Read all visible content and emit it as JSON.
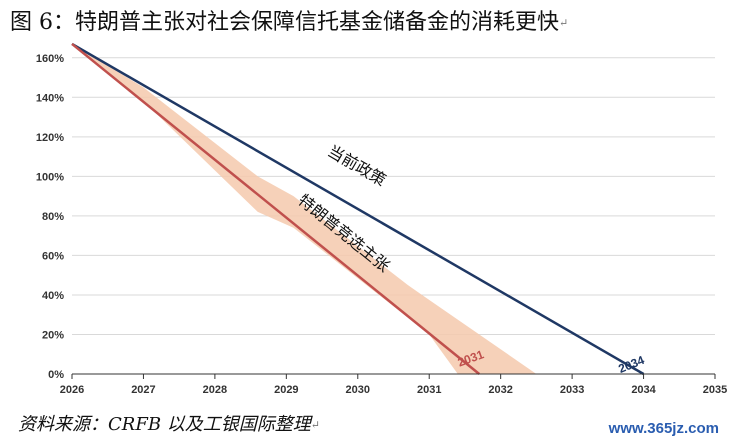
{
  "title": "图 6：特朗普主张对社会保障信托基金储备金的消耗更快",
  "return_mark": "↵",
  "source": "资料来源：CRFB 以及工银国际整理",
  "watermark": "www.365jz.com",
  "colors": {
    "current": "#1f3864",
    "trump": "#c0504d",
    "band": "#f4c9ad",
    "grid": "#d9d9d9",
    "axis": "#333333"
  },
  "chart_data": {
    "type": "line",
    "x_ticks": [
      "2026",
      "2027",
      "2028",
      "2029",
      "2030",
      "2031",
      "2032",
      "2033",
      "2034",
      "2035"
    ],
    "y_ticks": [
      "0%",
      "20%",
      "40%",
      "60%",
      "80%",
      "100%",
      "120%",
      "140%",
      "160%"
    ],
    "xlim": [
      2026,
      2035
    ],
    "ylim": [
      0,
      170
    ],
    "grid": true,
    "series": [
      {
        "name": "当前政策",
        "color": "#1f3864",
        "x": [
          2026.0,
          2034.0
        ],
        "y": [
          167,
          0
        ],
        "end_label": "2034"
      },
      {
        "name": "特朗普竞选主张",
        "color": "#c0504d",
        "x": [
          2026.0,
          2031.7
        ],
        "y": [
          167,
          0
        ],
        "end_label": "2031"
      }
    ],
    "band": {
      "color": "#f4c9ad",
      "upper": {
        "x": [
          2026.0,
          2027.0,
          2028.6,
          2029.1,
          2030.7,
          2030.9,
          2032.5
        ],
        "y": [
          167,
          145,
          100,
          90,
          45,
          40,
          0
        ]
      },
      "lower": {
        "x": [
          2026.0,
          2027.0,
          2028.6,
          2029.1,
          2031.0,
          2031.4
        ],
        "y": [
          167,
          138,
          82,
          74,
          20,
          0
        ]
      }
    }
  }
}
